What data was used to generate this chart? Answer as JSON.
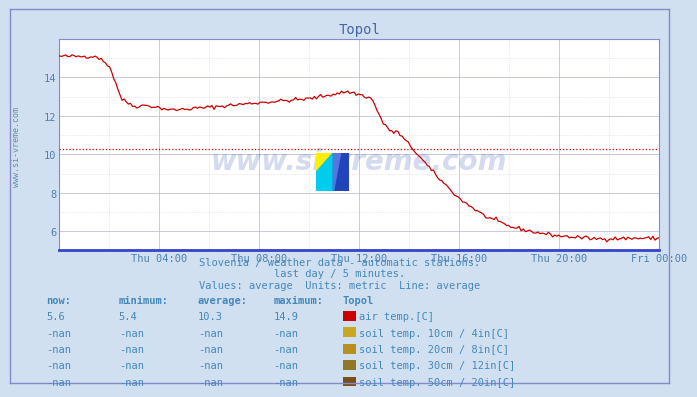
{
  "title": "Topol",
  "bg_color": "#d0e0f0",
  "plot_bg_color": "#ffffff",
  "grid_color_major": "#c0c0e0",
  "grid_color_minor": "#e0d0e0",
  "line_color": "#cc0000",
  "avg_line_color": "#cc0000",
  "avg_value": 10.3,
  "ylim": [
    5.0,
    16.0
  ],
  "yticks": [
    6,
    8,
    10,
    12,
    14
  ],
  "tick_color": "#5080b0",
  "title_color": "#4466aa",
  "text_color": "#4488bb",
  "watermark_text": "www.si-vreme.com",
  "watermark_color": "#1133aa",
  "watermark_alpha": 0.18,
  "subtitle1": "Slovenia / weather data - automatic stations.",
  "subtitle2": "last day / 5 minutes.",
  "subtitle3": "Values: average  Units: metric  Line: average",
  "table_headers": [
    "now:",
    "minimum:",
    "average:",
    "maximum:",
    "Topol"
  ],
  "table_rows": [
    [
      "5.6",
      "5.4",
      "10.3",
      "14.9",
      "air temp.[C]",
      "#cc0000"
    ],
    [
      "-nan",
      "-nan",
      "-nan",
      "-nan",
      "soil temp. 10cm / 4in[C]",
      "#c8a820"
    ],
    [
      "-nan",
      "-nan",
      "-nan",
      "-nan",
      "soil temp. 20cm / 8in[C]",
      "#b89020"
    ],
    [
      "-nan",
      "-nan",
      "-nan",
      "-nan",
      "soil temp. 30cm / 12in[C]",
      "#907828"
    ],
    [
      "-nan",
      "-nan",
      "-nan",
      "-nan",
      "soil temp. 50cm / 20in[C]",
      "#7a5018"
    ]
  ],
  "xaxis_labels": [
    "Thu 04:00",
    "Thu 08:00",
    "Thu 12:00",
    "Thu 16:00",
    "Thu 20:00",
    "Fri 00:00"
  ],
  "xaxis_positions": [
    0.1667,
    0.3333,
    0.5,
    0.6667,
    0.8333,
    1.0
  ],
  "left_label": "www.si-vreme.com",
  "left_label_color": "#5080a0",
  "border_color": "#8888cc",
  "spine_bottom_color": "#3344cc"
}
